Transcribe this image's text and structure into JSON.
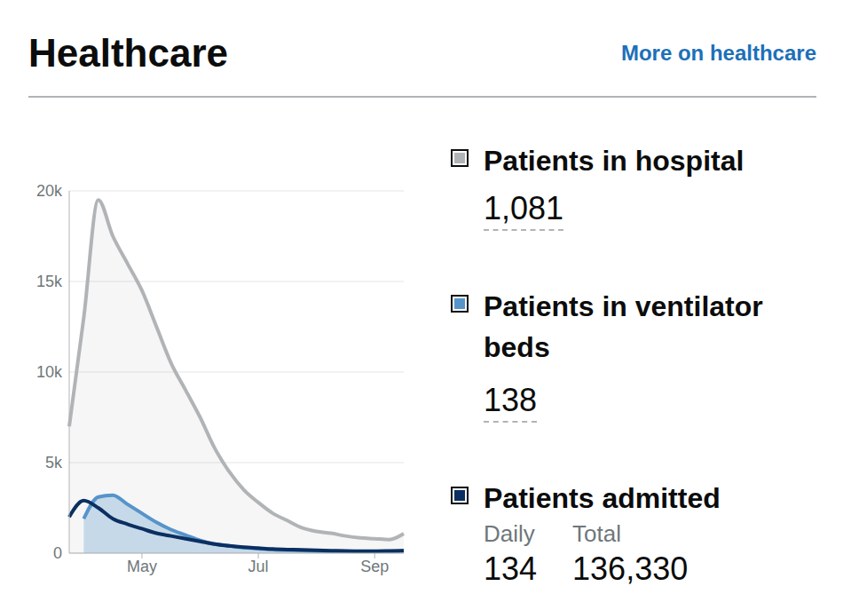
{
  "header": {
    "title": "Healthcare",
    "link": "More on healthcare"
  },
  "chart_data": {
    "type": "line",
    "categories": [
      null,
      null,
      null,
      null,
      null,
      "May",
      null,
      null,
      null,
      null,
      null,
      null,
      null,
      "Jul",
      null,
      null,
      null,
      null,
      null,
      null,
      null,
      "Sep",
      null,
      null
    ],
    "series": [
      {
        "name": "Patients in hospital",
        "type": "area",
        "color": "#b1b4b6",
        "values": [
          7000,
          13000,
          19500,
          17500,
          16000,
          14500,
          12500,
          10500,
          9000,
          7500,
          5800,
          4500,
          3500,
          2800,
          2200,
          1800,
          1400,
          1200,
          1100,
          950,
          850,
          800,
          750,
          1081
        ]
      },
      {
        "name": "Patients in ventilator beds",
        "type": "area",
        "color": "#5694ca",
        "values": [
          null,
          1900,
          3100,
          3200,
          2700,
          2200,
          1700,
          1300,
          1000,
          700,
          500,
          400,
          300,
          250,
          200,
          170,
          150,
          120,
          100,
          80,
          70,
          70,
          80,
          138
        ]
      },
      {
        "name": "Patients admitted",
        "type": "line",
        "color": "#0b2f61",
        "values": [
          2000,
          2900,
          2500,
          1900,
          1600,
          1350,
          1100,
          950,
          800,
          650,
          500,
          400,
          330,
          280,
          230,
          200,
          180,
          160,
          140,
          120,
          110,
          110,
          120,
          134
        ]
      }
    ],
    "ylim": [
      0,
      20000
    ],
    "yticks": [
      0,
      {
        "value": 5000,
        "label": "5k"
      },
      {
        "value": 10000,
        "label": "10k"
      },
      {
        "value": 15000,
        "label": "15k"
      },
      {
        "value": 20000,
        "label": "20k"
      }
    ],
    "grid": true
  },
  "headline_figures": [
    {
      "figures": [
        {
          "value": "1,081"
        }
      ]
    },
    {
      "figures": [
        {
          "value": "138"
        }
      ]
    },
    {
      "figures": [
        {
          "label": "Daily",
          "value": "134"
        },
        {
          "label": "Total",
          "value": "136,330"
        }
      ]
    }
  ]
}
